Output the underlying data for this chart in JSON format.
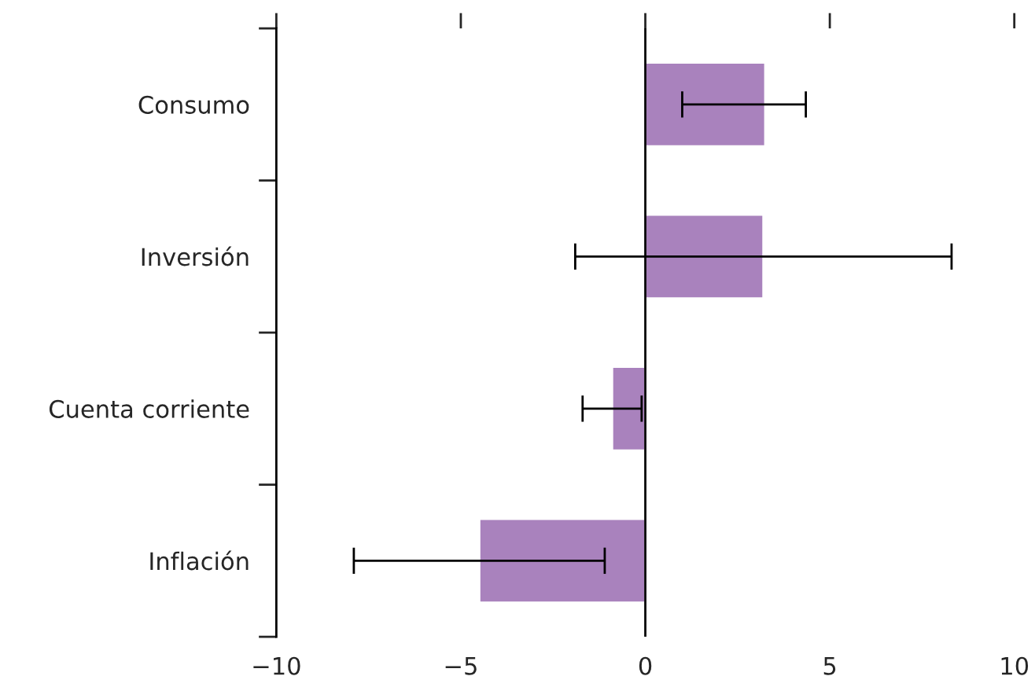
{
  "chart_data": {
    "type": "bar",
    "orientation": "horizontal",
    "categories": [
      "Consumo",
      "Inversión",
      "Cuenta corriente",
      "Inflación"
    ],
    "values": [
      3.25,
      3.2,
      -0.9,
      -4.5
    ],
    "color": "#a982bd",
    "errors": [
      [
        1.0,
        4.35
      ],
      [
        -1.9,
        8.3
      ],
      [
        -1.7,
        -0.1
      ],
      [
        -7.9,
        -1.1
      ]
    ],
    "xlim": [
      -10,
      10
    ],
    "xticks": [
      {
        "value": -10,
        "label": "−10"
      },
      {
        "value": -5,
        "label": "−5"
      },
      0,
      5,
      10
    ],
    "ref_lines": [
      {
        "axis": "x",
        "value": 0
      }
    ],
    "grid": false,
    "legend": false
  }
}
